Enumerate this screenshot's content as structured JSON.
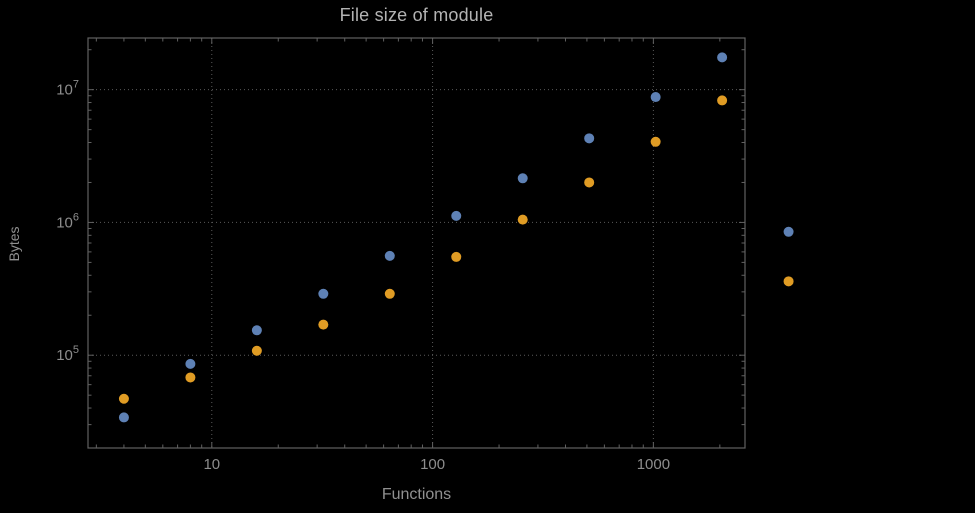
{
  "window": {
    "background": "#000000"
  },
  "chart_data": {
    "type": "scatter",
    "title": "File size of module",
    "xlabel": "Functions",
    "ylabel": "Bytes",
    "x_scale": "log",
    "y_scale": "log",
    "xlim": [
      2.75,
      2600
    ],
    "ylim": [
      20000,
      24500000
    ],
    "x_ticks": [
      10,
      100,
      1000
    ],
    "x_tick_labels": [
      "10",
      "100",
      "1000"
    ],
    "y_ticks": [
      100000,
      1000000,
      10000000
    ],
    "y_tick_exponents": [
      5,
      6,
      7
    ],
    "grid": {
      "style": "dotted",
      "color": "#5a5a5a",
      "x_values": [
        10,
        100,
        1000
      ],
      "y_values": [
        100000,
        1000000,
        10000000
      ]
    },
    "legend": "none",
    "series": [
      {
        "name": "series-blue",
        "color": "#5e81b5",
        "points": [
          [
            4,
            34000
          ],
          [
            8,
            86000
          ],
          [
            16,
            154000
          ],
          [
            32,
            290000
          ],
          [
            64,
            560000
          ],
          [
            128,
            1120000
          ],
          [
            256,
            2150000
          ],
          [
            512,
            4300000
          ],
          [
            1024,
            8800000
          ],
          [
            2048,
            17500000
          ],
          [
            4096,
            850000
          ]
        ]
      },
      {
        "name": "series-orange",
        "color": "#e09c24",
        "points": [
          [
            4,
            47000
          ],
          [
            8,
            68000
          ],
          [
            16,
            108000
          ],
          [
            32,
            170000
          ],
          [
            64,
            290000
          ],
          [
            128,
            550000
          ],
          [
            256,
            1050000
          ],
          [
            512,
            2000000
          ],
          [
            1024,
            4050000
          ],
          [
            2048,
            8300000
          ],
          [
            4096,
            360000
          ]
        ]
      }
    ]
  },
  "style": {
    "frame_color": "#616161",
    "tick_color": "#616161",
    "tick_label_color": "#8d8d8d",
    "title_color": "#b3b3b3",
    "axis_label_color": "#909090",
    "point_radius": 5
  }
}
